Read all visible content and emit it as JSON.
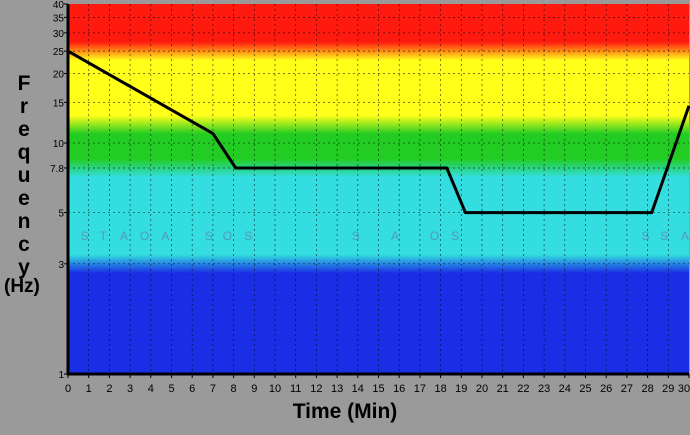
{
  "chart_data": {
    "type": "line",
    "title": "",
    "xlabel": "Time (Min)",
    "ylabel": "Frequency",
    "ylabel_unit": "(Hz)",
    "xlim": [
      0,
      30
    ],
    "ylim": [
      1,
      40
    ],
    "yscale": "log",
    "grid": true,
    "x_ticks": [
      "0",
      "1",
      "2",
      "3",
      "4",
      "5",
      "6",
      "7",
      "8",
      "9",
      "10",
      "11",
      "12",
      "13",
      "14",
      "15",
      "16",
      "17",
      "18",
      "19",
      "20",
      "21",
      "22",
      "23",
      "24",
      "25",
      "26",
      "27",
      "28",
      "29",
      "30"
    ],
    "y_ticks": [
      {
        "value": 1,
        "label": "1"
      },
      {
        "value": 3,
        "label": "3"
      },
      {
        "value": 5,
        "label": "5"
      },
      {
        "value": 7.8,
        "label": "7.8"
      },
      {
        "value": 10,
        "label": "10"
      },
      {
        "value": 15,
        "label": "15"
      },
      {
        "value": 20,
        "label": "20"
      },
      {
        "value": 25,
        "label": "25"
      },
      {
        "value": 30,
        "label": "30"
      },
      {
        "value": 35,
        "label": "35"
      },
      {
        "value": 40,
        "label": "40"
      }
    ],
    "bands": [
      {
        "from": 1,
        "to": 3,
        "color": "#1a2ee6"
      },
      {
        "from": 3,
        "to": 7.8,
        "color": "#33dde0"
      },
      {
        "from": 7.8,
        "to": 12,
        "color": "#22cc22"
      },
      {
        "from": 12,
        "to": 25,
        "color": "#ffff1a"
      },
      {
        "from": 25,
        "to": 40,
        "color": "#ff1a0f"
      }
    ],
    "series": [
      {
        "color": "#000000",
        "points": [
          {
            "x": 0,
            "y": 25
          },
          {
            "x": 7,
            "y": 11
          },
          {
            "x": 8.1,
            "y": 7.8
          },
          {
            "x": 18.3,
            "y": 7.8
          },
          {
            "x": 19.2,
            "y": 5
          },
          {
            "x": 28.2,
            "y": 5
          },
          {
            "x": 30,
            "y": 14.5
          }
        ]
      }
    ],
    "annotations": [
      {
        "text": "S",
        "x": 0.8,
        "y": 4
      },
      {
        "text": "T",
        "x": 1.7,
        "y": 4
      },
      {
        "text": "A",
        "x": 2.7,
        "y": 4
      },
      {
        "text": "O",
        "x": 3.7,
        "y": 4
      },
      {
        "text": "A",
        "x": 4.7,
        "y": 4
      },
      {
        "text": "S",
        "x": 6.8,
        "y": 4
      },
      {
        "text": "O",
        "x": 7.7,
        "y": 4
      },
      {
        "text": "S",
        "x": 8.7,
        "y": 4
      },
      {
        "text": "S",
        "x": 13.9,
        "y": 4
      },
      {
        "text": "A",
        "x": 15.8,
        "y": 4
      },
      {
        "text": "O",
        "x": 17.7,
        "y": 4
      },
      {
        "text": "S",
        "x": 18.7,
        "y": 4
      },
      {
        "text": "S",
        "x": 27.9,
        "y": 4
      },
      {
        "text": "S",
        "x": 28.8,
        "y": 4
      },
      {
        "text": "A",
        "x": 29.8,
        "y": 4
      }
    ]
  },
  "colors": {
    "frame_background": "#9a9a9a",
    "line": "#000000"
  }
}
